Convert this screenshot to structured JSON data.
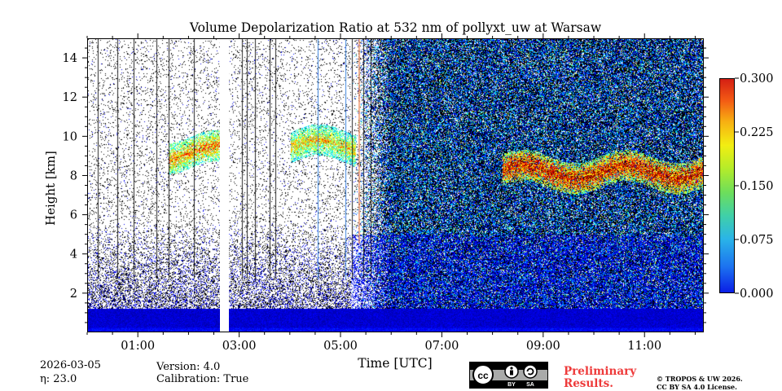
{
  "chart_data": {
    "type": "heatmap",
    "title": "Volume Depolarization Ratio at 532 nm of pollyxt_uw at Warsaw",
    "xlabel": "Time [UTC]",
    "ylabel": "Height [km]",
    "xlim_hours": [
      0.0,
      12.17
    ],
    "ylim_km": [
      0.0,
      15.0
    ],
    "x_ticks": [
      {
        "value": 1,
        "label": "01:00"
      },
      {
        "value": 3,
        "label": "03:00"
      },
      {
        "value": 5,
        "label": "05:00"
      },
      {
        "value": 7,
        "label": "07:00"
      },
      {
        "value": 9,
        "label": "09:00"
      },
      {
        "value": 11,
        "label": "11:00"
      }
    ],
    "y_ticks": [
      {
        "value": 2,
        "label": "2"
      },
      {
        "value": 4,
        "label": "4"
      },
      {
        "value": 6,
        "label": "6"
      },
      {
        "value": 8,
        "label": "8"
      },
      {
        "value": 10,
        "label": "10"
      },
      {
        "value": 12,
        "label": "12"
      },
      {
        "value": 14,
        "label": "14"
      }
    ],
    "colorbar": {
      "range": [
        0.0,
        0.3
      ],
      "ticks": [
        "0.000",
        "0.075",
        "0.150",
        "0.225",
        "0.300"
      ],
      "colormap": "jet"
    },
    "features": {
      "data_gap_hours": [
        2.6,
        2.78
      ],
      "aerosol_layer_top_km": 1.2,
      "cloud_layers": [
        {
          "t_start": 1.6,
          "t_end": 2.6,
          "z_km": 9.2,
          "depol": 0.2
        },
        {
          "t_start": 4.0,
          "t_end": 5.3,
          "z_km": 9.5,
          "depol": 0.18
        },
        {
          "t_start": 8.2,
          "t_end": 12.17,
          "z_km": 8.2,
          "depol": 0.25
        }
      ]
    }
  },
  "meta": {
    "date": "2026-03-05",
    "eta": "η: 23.0",
    "version": "Version: 4.0",
    "calibration": "Calibration: True"
  },
  "footer": {
    "cc_label_by": "BY",
    "cc_label_sa": "SA",
    "prelim_line1": "Preliminary",
    "prelim_line2": "Results.",
    "copyright_line1": "© TROPOS & UW 2026.",
    "copyright_line2": "CC BY SA 4.0 License."
  },
  "colors": {
    "prelim": "#ee3a3a",
    "badge_bg": "#a9aaa9"
  }
}
